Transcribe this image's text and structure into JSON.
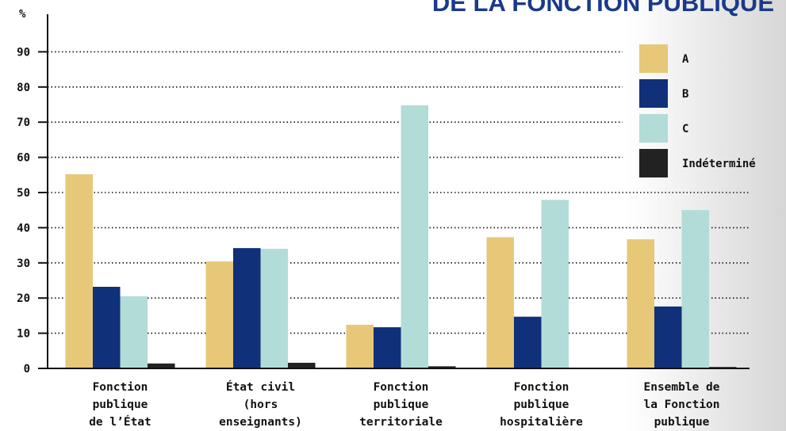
{
  "chart_data": {
    "type": "bar",
    "title": "DE LA FONCTION PUBLIQUE",
    "y_label": "%",
    "categories": [
      "Fonction\npublique\nde l’État",
      "État civil\n(hors\nenseignants)",
      "Fonction\npublique\nterritoriale",
      "Fonction\npublique\nhospitalière",
      "Ensemble de\nla Fonction\npublique"
    ],
    "series": [
      {
        "name": "A",
        "color": "#e6c878",
        "values": [
          55.2,
          30.4,
          12.4,
          37.3,
          36.7
        ]
      },
      {
        "name": "B",
        "color": "#10307a",
        "values": [
          23.2,
          34.2,
          11.7,
          14.7,
          17.6
        ]
      },
      {
        "name": "C",
        "color": "#b2dcd8",
        "values": [
          20.5,
          34.0,
          74.8,
          47.9,
          45.0
        ]
      },
      {
        "name": "Indéterminé",
        "color": "#222222",
        "values": [
          1.4,
          1.6,
          0.6,
          0,
          0.4
        ]
      }
    ],
    "ylim": [
      0,
      100
    ],
    "yticks": [
      0,
      10,
      20,
      30,
      40,
      50,
      60,
      70,
      80,
      90
    ],
    "grid": true,
    "legend": "top-right"
  }
}
